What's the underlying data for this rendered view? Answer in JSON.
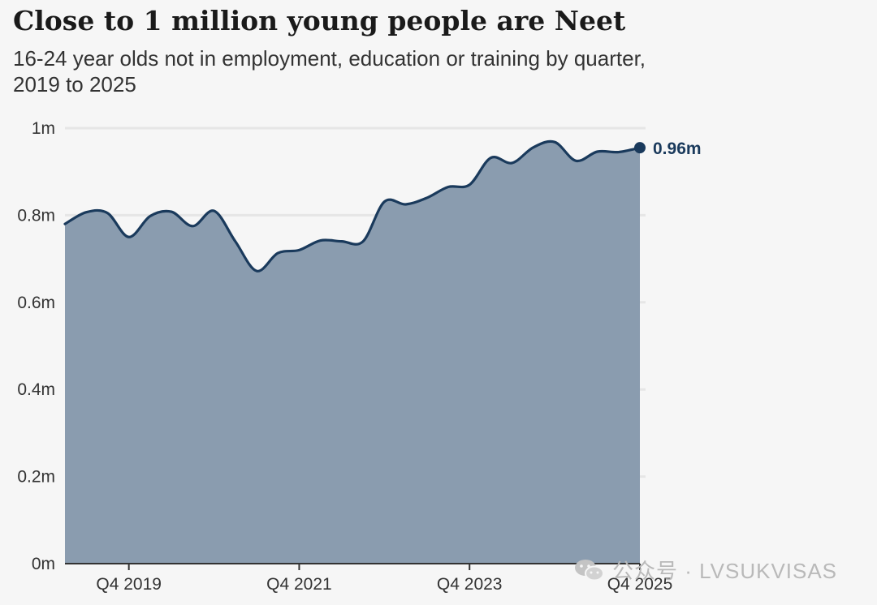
{
  "chart_data": {
    "type": "area",
    "title": "Close to 1 million young people are Neet",
    "subtitle": "16-24 year olds not in employment, education or training by quarter, 2019 to 2025",
    "xlabel": "",
    "ylabel": "",
    "ylim": [
      0,
      1000000
    ],
    "y_ticks": [
      {
        "value": 0,
        "label": "0m"
      },
      {
        "value": 200000,
        "label": "0.2m"
      },
      {
        "value": 400000,
        "label": "0.4m"
      },
      {
        "value": 600000,
        "label": "0.6m"
      },
      {
        "value": 800000,
        "label": "0.8m"
      },
      {
        "value": 1000000,
        "label": "1m"
      }
    ],
    "x_tick_labels": [
      "Q4 2019",
      "Q4 2021",
      "Q4 2023",
      "Q4 2025"
    ],
    "x_tick_index": [
      3,
      11,
      19,
      27
    ],
    "grid": true,
    "series": [
      {
        "values": [
          780000,
          807000,
          805000,
          750000,
          798000,
          808000,
          775000,
          810000,
          740000,
          672000,
          713000,
          720000,
          742000,
          740000,
          740000,
          831000,
          825000,
          840000,
          865000,
          870000,
          932000,
          920000,
          956000,
          968000,
          925000,
          946000,
          945000,
          955000
        ]
      }
    ],
    "end_label": "0.96m",
    "colors": {
      "area_fill": "#8a9caf",
      "line": "#1a3a5c",
      "grid": "#e6e6e6",
      "axis": "#333333"
    }
  },
  "watermark": {
    "text": "公众号 · LVSUKVISAS",
    "icon": "wechat-icon"
  }
}
